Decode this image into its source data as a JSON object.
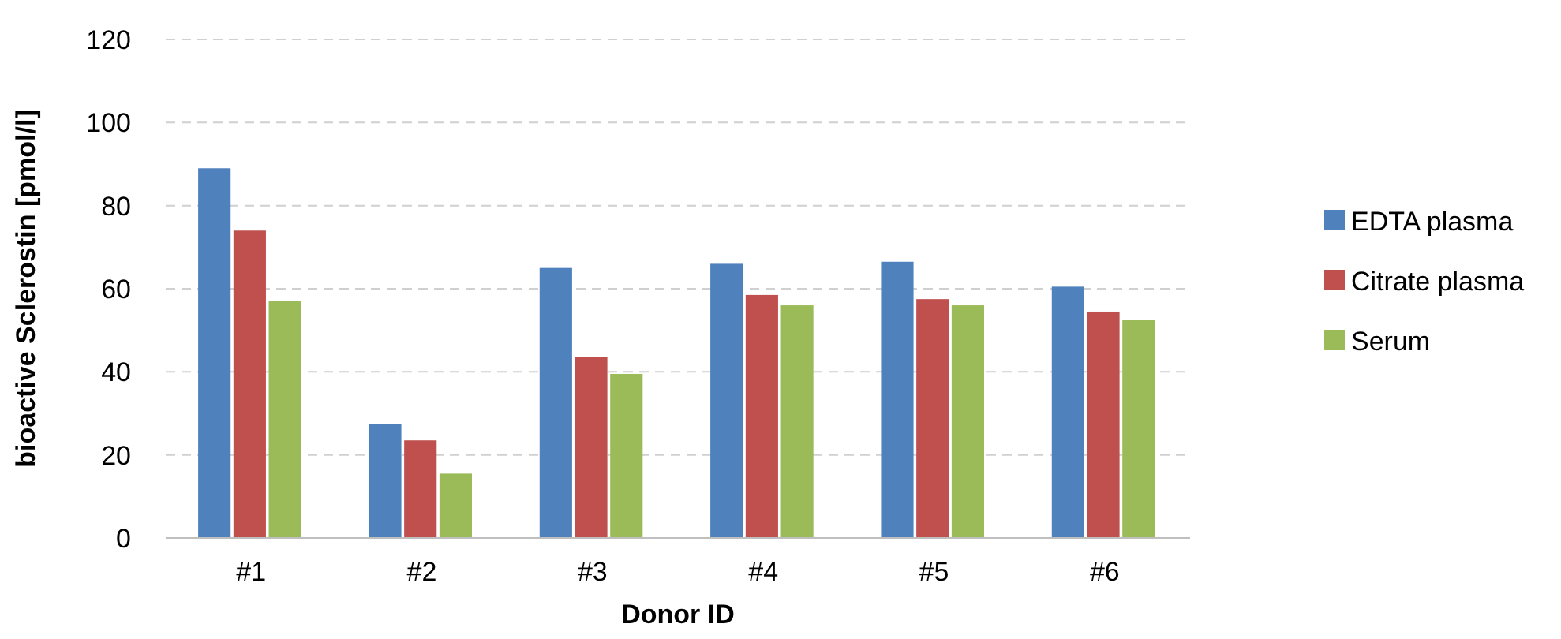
{
  "chart_data": {
    "type": "bar",
    "xlabel": "Donor ID",
    "ylabel": "bioactive Sclerostin  [pmol/l]",
    "categories": [
      "#1",
      "#2",
      "#3",
      "#4",
      "#5",
      "#6"
    ],
    "series": [
      {
        "name": "EDTA plasma",
        "color": "#4f81bd",
        "values": [
          89,
          27.5,
          65,
          66,
          66.5,
          60.5
        ]
      },
      {
        "name": "Citrate plasma",
        "color": "#c0504d",
        "values": [
          74,
          23.5,
          43.5,
          58.5,
          57.5,
          54.5
        ]
      },
      {
        "name": "Serum",
        "color": "#9bbb59",
        "values": [
          57,
          15.5,
          39.5,
          56,
          56,
          52.5
        ]
      }
    ],
    "ylim": [
      0,
      120
    ],
    "yticks": [
      0,
      20,
      40,
      60,
      80,
      100,
      120
    ],
    "grid": "y",
    "legend": "right"
  }
}
